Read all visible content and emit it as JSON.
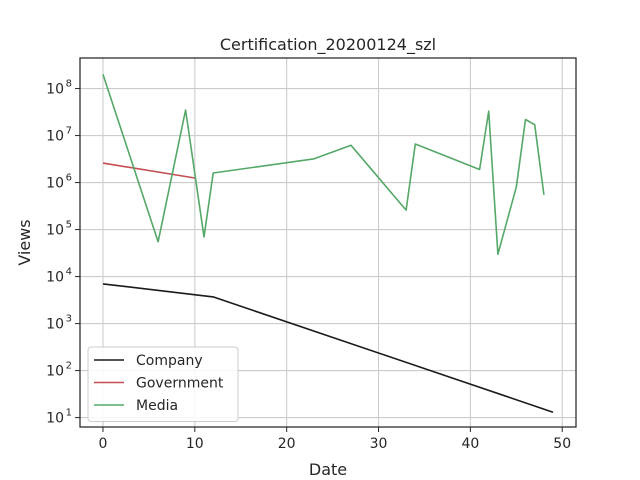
{
  "chart_data": {
    "type": "line",
    "title": "Certification_20200124_szl",
    "xlabel": "Date",
    "ylabel": "Views",
    "xlim": [
      -2.5,
      51.5
    ],
    "ylim_log10": [
      0.8,
      8.65
    ],
    "yscale": "log",
    "grid": true,
    "legend_position": "lower-left",
    "x_ticks": [
      0,
      10,
      20,
      30,
      40,
      50
    ],
    "y_ticks": [
      {
        "exp": 1,
        "base": "10",
        "sup": "1"
      },
      {
        "exp": 2,
        "base": "10",
        "sup": "2"
      },
      {
        "exp": 3,
        "base": "10",
        "sup": "3"
      },
      {
        "exp": 4,
        "base": "10",
        "sup": "4"
      },
      {
        "exp": 5,
        "base": "10",
        "sup": "5"
      },
      {
        "exp": 6,
        "base": "10",
        "sup": "6"
      },
      {
        "exp": 7,
        "base": "10",
        "sup": "7"
      },
      {
        "exp": 8,
        "base": "10",
        "sup": "8"
      }
    ],
    "series": [
      {
        "name": "Company",
        "color": "#1a1a1a",
        "points": [
          [
            0,
            7000
          ],
          [
            12,
            3700
          ],
          [
            49,
            13
          ]
        ]
      },
      {
        "name": "Government",
        "color": "#c44e52",
        "points": [
          [
            0,
            2600000
          ],
          [
            10,
            1250000
          ]
        ]
      },
      {
        "name": "Media",
        "color": "#55a868",
        "points": [
          [
            0,
            200000000
          ],
          [
            6,
            55000
          ],
          [
            9,
            35000000
          ],
          [
            11,
            70000
          ],
          [
            12,
            1600000
          ],
          [
            23,
            3200000
          ],
          [
            27,
            6200000
          ],
          [
            33,
            260000
          ],
          [
            34,
            6600000
          ],
          [
            41,
            1900000
          ],
          [
            42,
            33000000
          ],
          [
            43,
            30000
          ],
          [
            45,
            800000
          ],
          [
            46,
            22000000
          ],
          [
            47,
            17000000
          ],
          [
            48,
            550000
          ]
        ]
      }
    ]
  }
}
